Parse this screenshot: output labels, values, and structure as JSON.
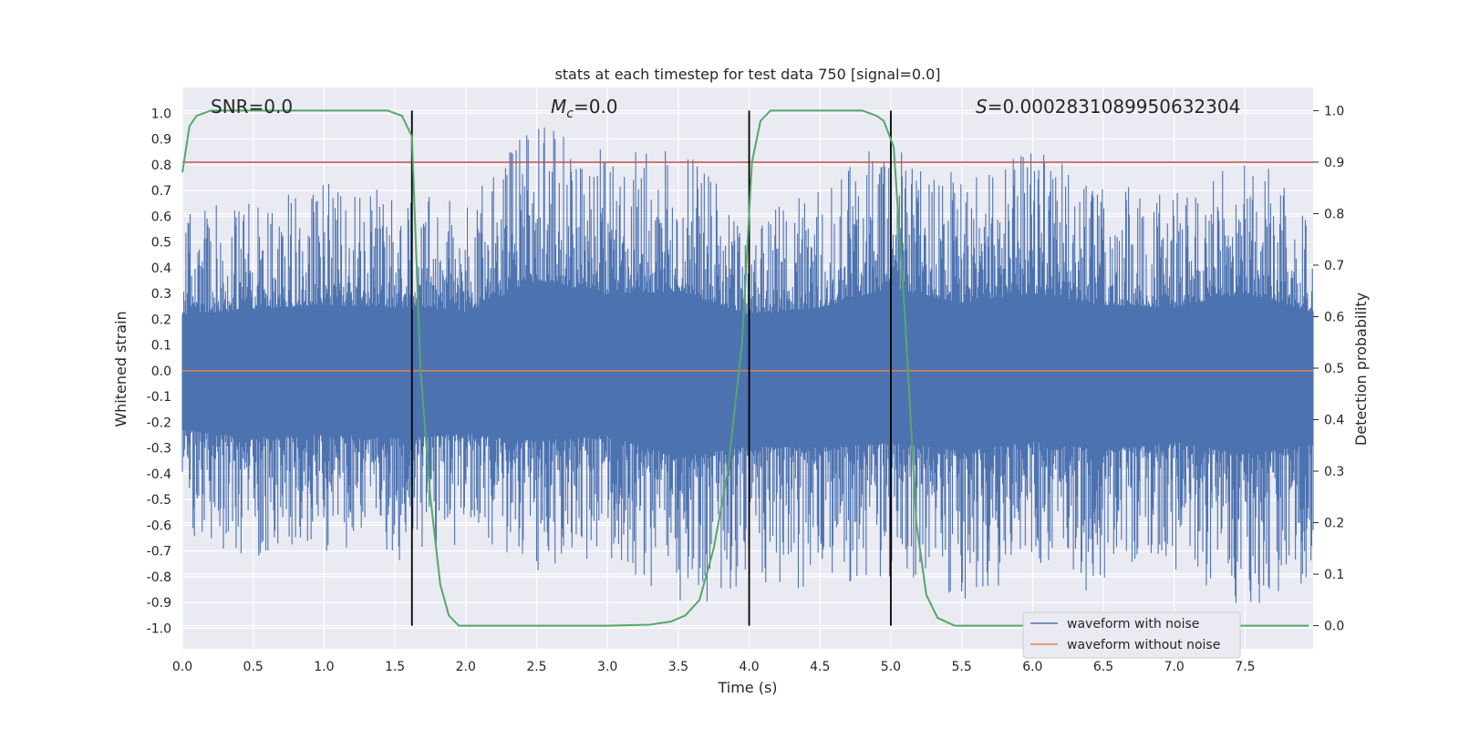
{
  "chart_data": {
    "type": "line",
    "title": "stats at each timestep for test data 750 [signal=0.0]",
    "xlabel": "Time (s)",
    "ylabel": "Whitened strain",
    "y2label": "Detection probability",
    "xlim": [
      0.0,
      7.98
    ],
    "ylim": [
      -1.08,
      1.1
    ],
    "y2lim": [
      -0.045,
      1.045
    ],
    "x_ticks": [
      "0.0",
      "0.5",
      "1.0",
      "1.5",
      "2.0",
      "2.5",
      "3.0",
      "3.5",
      "4.0",
      "4.5",
      "5.0",
      "5.5",
      "6.0",
      "6.5",
      "7.0",
      "7.5"
    ],
    "y_ticks": [
      "1.0",
      "0.9",
      "0.8",
      "0.7",
      "0.6",
      "0.5",
      "0.4",
      "0.3",
      "0.2",
      "0.1",
      "0.0",
      "-0.1",
      "-0.2",
      "-0.3",
      "-0.4",
      "-0.5",
      "-0.6",
      "-0.7",
      "-0.8",
      "-0.9",
      "-1.0"
    ],
    "y2_ticks": [
      "1.0",
      "0.9",
      "0.8",
      "0.7",
      "0.6",
      "0.5",
      "0.4",
      "0.3",
      "0.2",
      "0.1",
      "0.0"
    ],
    "annotations": {
      "snr": "SNR=0.0",
      "mc_symbol": "M",
      "mc_sub": "c",
      "mc_value": "=0.0",
      "s_symbol": "S",
      "s_value": "=0.0002831089950632304"
    },
    "legend": {
      "location": "lower-right",
      "entries": [
        "waveform with noise",
        "waveform without noise"
      ]
    },
    "threshold": {
      "value": 0.9,
      "axis": "right",
      "color": "#c44e52"
    },
    "vertical_lines": [
      1.62,
      4.0,
      5.0
    ],
    "series": [
      {
        "name": "waveform with noise",
        "color": "#4c72b0",
        "description": "noise band, envelope approx",
        "envelope_x": [
          0.0,
          0.5,
          1.0,
          1.5,
          2.0,
          2.5,
          3.0,
          3.5,
          4.0,
          4.5,
          5.0,
          5.5,
          6.0,
          6.5,
          7.0,
          7.5,
          7.98
        ],
        "envelope_upper": [
          0.62,
          0.68,
          0.73,
          0.7,
          0.65,
          1.0,
          0.85,
          0.88,
          0.62,
          0.7,
          0.92,
          0.75,
          0.86,
          0.73,
          0.7,
          0.86,
          0.65
        ],
        "envelope_lower": [
          -0.66,
          -0.74,
          -0.71,
          -0.75,
          -0.7,
          -0.78,
          -0.72,
          -0.96,
          -0.84,
          -0.85,
          -0.8,
          -0.89,
          -0.79,
          -0.88,
          -0.79,
          -0.93,
          -0.82
        ]
      },
      {
        "name": "waveform without noise",
        "color": "#dd8452",
        "x": [
          0.0,
          7.98
        ],
        "y": [
          0.0,
          0.0
        ]
      },
      {
        "name": "Detection probability",
        "axis": "right",
        "color": "#55a868",
        "x": [
          0.0,
          0.05,
          0.1,
          0.2,
          0.5,
          1.0,
          1.45,
          1.55,
          1.62,
          1.68,
          1.75,
          1.82,
          1.88,
          1.95,
          2.05,
          2.5,
          3.0,
          3.3,
          3.45,
          3.55,
          3.65,
          3.75,
          3.85,
          3.95,
          4.02,
          4.08,
          4.15,
          4.3,
          4.6,
          4.8,
          4.9,
          4.95,
          5.02,
          5.1,
          5.18,
          5.25,
          5.33,
          5.45,
          6.0,
          7.0,
          7.95
        ],
        "y": [
          0.88,
          0.97,
          0.99,
          1.0,
          1.0,
          1.0,
          1.0,
          0.99,
          0.95,
          0.5,
          0.25,
          0.08,
          0.02,
          0.0,
          0.0,
          0.0,
          0.0,
          0.002,
          0.008,
          0.02,
          0.05,
          0.15,
          0.3,
          0.55,
          0.9,
          0.98,
          1.0,
          1.0,
          1.0,
          1.0,
          0.99,
          0.98,
          0.93,
          0.6,
          0.2,
          0.06,
          0.015,
          0.0,
          0.0,
          0.0,
          0.0
        ]
      }
    ]
  }
}
